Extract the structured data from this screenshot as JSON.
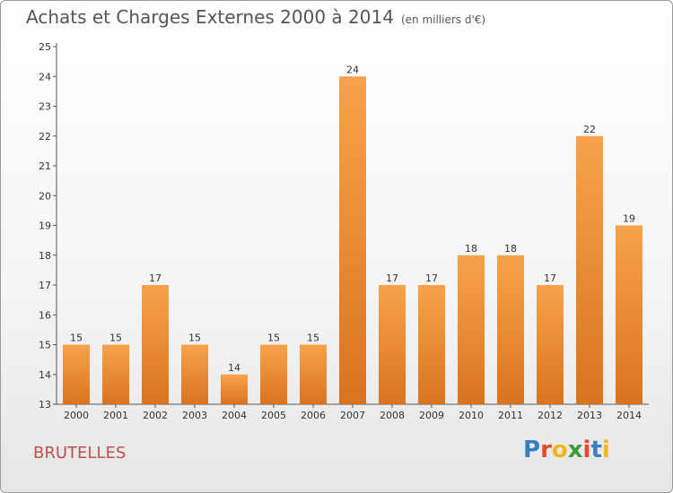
{
  "chart_data": {
    "type": "bar",
    "title": "Achats et Charges Externes 2000 à 2014",
    "subtitle": "(en milliers d'€)",
    "categories": [
      "2000",
      "2001",
      "2002",
      "2003",
      "2004",
      "2005",
      "2006",
      "2007",
      "2008",
      "2009",
      "2010",
      "2011",
      "2012",
      "2013",
      "2014"
    ],
    "values": [
      15,
      15,
      17,
      15,
      14,
      15,
      15,
      24,
      17,
      17,
      18,
      18,
      17,
      22,
      19
    ],
    "ylim": [
      13,
      25
    ],
    "yticks": [
      13,
      14,
      15,
      16,
      17,
      18,
      19,
      20,
      21,
      22,
      23,
      24,
      25
    ],
    "grid": false,
    "bar_color_top": "#f7a34b",
    "bar_color_bottom": "#d9741e"
  },
  "footer": {
    "city": "BRUTELLES",
    "logo_letters": [
      "P",
      "r",
      "o",
      "x",
      "i",
      "t",
      "i"
    ],
    "logo_colors": [
      "#3a7fc1",
      "#e8472b",
      "#f2b51b",
      "#3a9e3a",
      "#e8472b",
      "#3a7fc1",
      "#f2b51b"
    ]
  }
}
